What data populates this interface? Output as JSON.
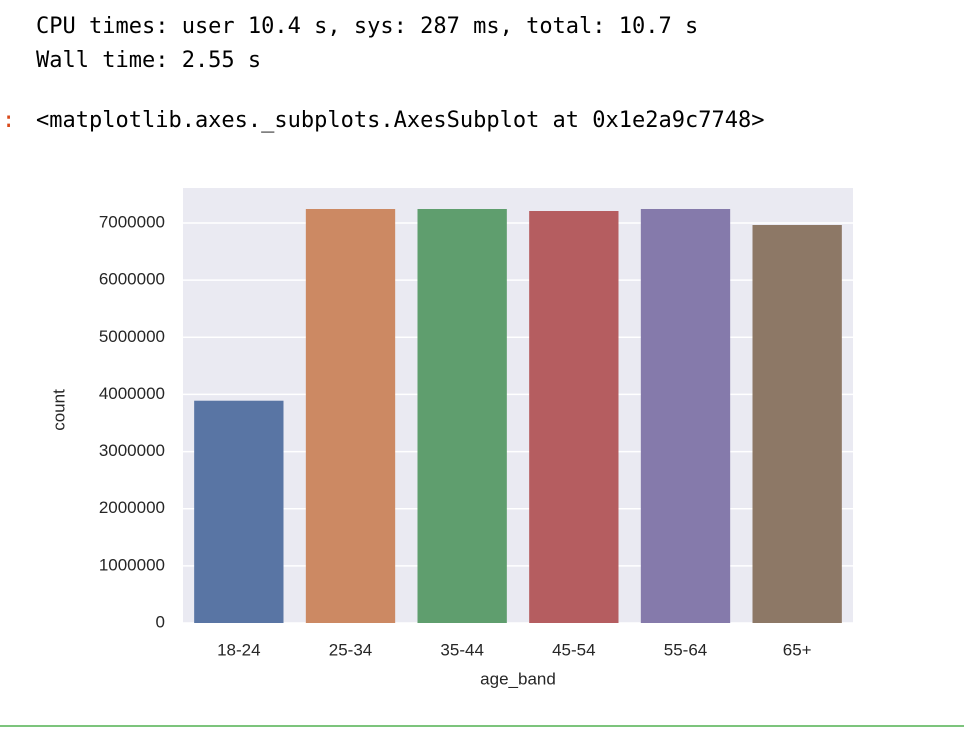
{
  "output": {
    "cpu_line": "CPU times: user 10.4 s, sys: 287 ms, total: 10.7 s",
    "wall_line": "Wall time: 2.55 s",
    "prompt": ":",
    "repr": "<matplotlib.axes._subplots.AxesSubplot at 0x1e2a9c7748>"
  },
  "chart_data": {
    "type": "bar",
    "xlabel": "age_band",
    "ylabel": "count",
    "categories": [
      "18-24",
      "25-34",
      "35-44",
      "45-54",
      "55-64",
      "65+"
    ],
    "values": [
      3890000,
      7245000,
      7245000,
      7210000,
      7245000,
      6965000
    ],
    "colors": [
      "#5975a4",
      "#cc8963",
      "#5f9e6e",
      "#b55d60",
      "#857aab",
      "#8d7866"
    ],
    "ylim": [
      0,
      7612500
    ],
    "yticks": [
      0,
      1000000,
      2000000,
      3000000,
      4000000,
      5000000,
      6000000,
      7000000
    ],
    "grid": true
  }
}
